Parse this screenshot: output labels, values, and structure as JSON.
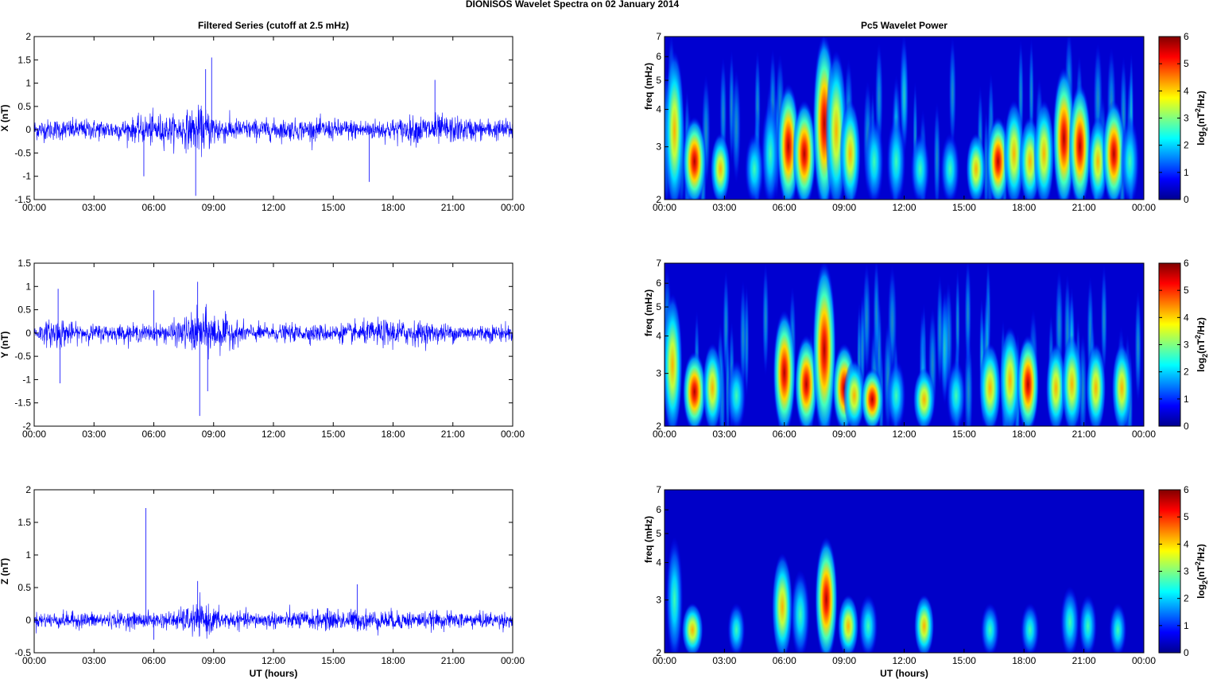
{
  "figure": {
    "title": "DIONISOS Wavelet Spectra on 02 January   2014"
  },
  "chart_data": [
    {
      "type": "line",
      "title": "Filtered Series (cutoff at 2.5 mHz)",
      "ylabel": "X (nT)",
      "xlabel": "",
      "ylim": [
        -1.5,
        2
      ],
      "yticks": [
        "2",
        "1.5",
        "1",
        "0.5",
        "0",
        "-0.5",
        "-1",
        "-1.5"
      ],
      "xticks": [
        "00:00",
        "03:00",
        "06:00",
        "09:00",
        "12:00",
        "15:00",
        "18:00",
        "21:00",
        "00:00"
      ],
      "line_color": "#0000ff",
      "grid": false
    },
    {
      "type": "line",
      "title": "",
      "ylabel": "Y (nT)",
      "xlabel": "",
      "ylim": [
        -2,
        1.5
      ],
      "yticks": [
        "1.5",
        "1",
        "0.5",
        "0",
        "-0.5",
        "-1",
        "-1.5",
        "-2"
      ],
      "xticks": [
        "00:00",
        "03:00",
        "06:00",
        "09:00",
        "12:00",
        "15:00",
        "18:00",
        "21:00",
        "00:00"
      ],
      "line_color": "#0000ff",
      "grid": false
    },
    {
      "type": "line",
      "title": "",
      "ylabel": "Z (nT)",
      "xlabel": "UT (hours)",
      "ylim": [
        -0.5,
        2
      ],
      "yticks": [
        "2",
        "1.5",
        "1",
        "0.5",
        "0",
        "-0.5"
      ],
      "xticks": [
        "00:00",
        "03:00",
        "06:00",
        "09:00",
        "12:00",
        "15:00",
        "18:00",
        "21:00",
        "00:00"
      ],
      "line_color": "#0000ff",
      "grid": false
    },
    {
      "type": "heatmap",
      "title": "Pc5 Wavelet Power",
      "ylabel": "freq (mHz)",
      "xlabel": "",
      "ylim": [
        2,
        7
      ],
      "yscale": "log",
      "yticks": [
        "7",
        "6",
        "5",
        "4",
        "3",
        "2"
      ],
      "xticks": [
        "00:00",
        "03:00",
        "06:00",
        "09:00",
        "12:00",
        "15:00",
        "18:00",
        "21:00",
        "00:00"
      ],
      "colorbar": {
        "label": "log2(nT2/Hz)",
        "ticks": [
          "6",
          "5",
          "4",
          "3",
          "2",
          "1",
          "0"
        ],
        "colormap": "jet"
      }
    },
    {
      "type": "heatmap",
      "title": "",
      "ylabel": "freq (mHz)",
      "xlabel": "",
      "ylim": [
        2,
        7
      ],
      "yscale": "log",
      "yticks": [
        "7",
        "6",
        "5",
        "4",
        "3",
        "2"
      ],
      "xticks": [
        "00:00",
        "03:00",
        "06:00",
        "09:00",
        "12:00",
        "15:00",
        "18:00",
        "21:00",
        "00:00"
      ],
      "colorbar": {
        "label": "log2(nT2/Hz)",
        "ticks": [
          "6",
          "5",
          "4",
          "3",
          "2",
          "1",
          "0"
        ],
        "colormap": "jet"
      }
    },
    {
      "type": "heatmap",
      "title": "",
      "ylabel": "freq (mHz)",
      "xlabel": "UT (hours)",
      "ylim": [
        2,
        7
      ],
      "yscale": "log",
      "yticks": [
        "7",
        "6",
        "5",
        "4",
        "3",
        "2"
      ],
      "xticks": [
        "00:00",
        "03:00",
        "06:00",
        "09:00",
        "12:00",
        "15:00",
        "18:00",
        "21:00",
        "00:00"
      ],
      "colorbar": {
        "label": "log2(nT2/Hz)",
        "ticks": [
          "6",
          "5",
          "4",
          "3",
          "2",
          "1",
          "0"
        ],
        "colormap": "jet"
      }
    }
  ]
}
